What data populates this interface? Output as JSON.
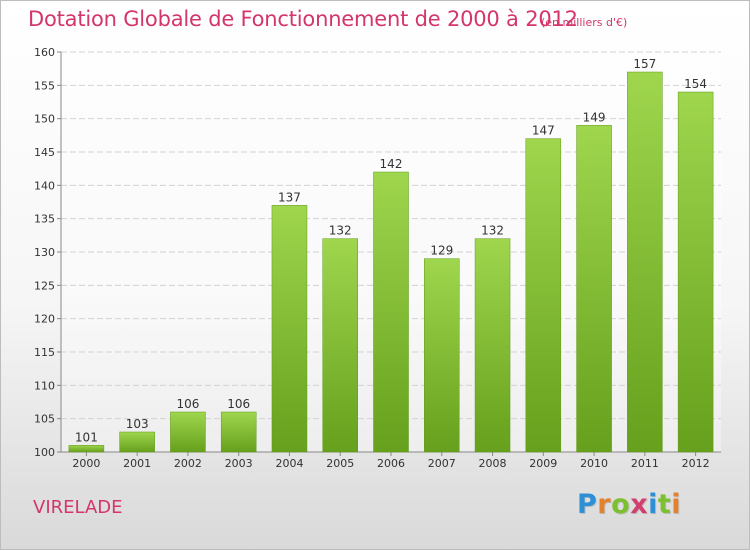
{
  "title": "Dotation Globale de Fonctionnement de 2000 à 2012",
  "subtitle": "(en milliers d'€)",
  "place": "VIRELADE",
  "logo": {
    "letters": [
      "P",
      "r",
      "o",
      "x",
      "i",
      "t",
      "i"
    ],
    "colors": [
      "#2d8fd6",
      "#e4812a",
      "#7cbf2f",
      "#d23f6f",
      "#2d8fd6",
      "#7cbf2f",
      "#e4812a"
    ]
  },
  "colors": {
    "title": "#d4356b",
    "bar_top": "#9fd64e",
    "bar_bottom": "#66a01c"
  },
  "chart_data": {
    "type": "bar",
    "categories": [
      "2000",
      "2001",
      "2002",
      "2003",
      "2004",
      "2005",
      "2006",
      "2007",
      "2008",
      "2009",
      "2010",
      "2011",
      "2012"
    ],
    "values": [
      101,
      103,
      106,
      106,
      137,
      132,
      142,
      129,
      132,
      147,
      149,
      157,
      154
    ],
    "data_labels": [
      "101",
      "103",
      "106",
      "106",
      "137",
      "132",
      "142",
      "129",
      "132",
      "147",
      "149",
      "157",
      "154"
    ],
    "ylim": [
      100,
      160
    ],
    "yticks": [
      100,
      105,
      110,
      115,
      120,
      125,
      130,
      135,
      140,
      145,
      150,
      155,
      160
    ],
    "ytick_labels": [
      "100",
      "105",
      "110",
      "115",
      "120",
      "125",
      "130",
      "135",
      "140",
      "145",
      "150",
      "155",
      "160"
    ],
    "grid": true
  }
}
